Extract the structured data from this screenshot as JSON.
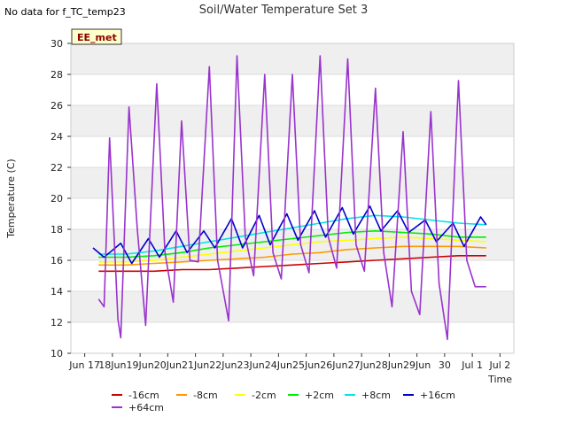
{
  "no_data_text": "No data for f_TC_temp23",
  "badge": "EE_met",
  "chart_data": {
    "type": "line",
    "title": "Soil/Water Temperature Set 3",
    "xlabel": "Time",
    "ylabel": "Temperature (C)",
    "ylim": [
      10,
      30
    ],
    "yticks": [
      10,
      12,
      14,
      16,
      18,
      20,
      22,
      24,
      26,
      28,
      30
    ],
    "xlim": [
      "Jun 17",
      "Jul 2"
    ],
    "xtick_labels": [
      "Jun 17",
      "18Jun",
      "19Jun",
      "20Jun",
      "21Jun",
      "22Jun",
      "23Jun",
      "24Jun",
      "25Jun",
      "26Jun",
      "27Jun",
      "28Jun",
      "29Jun",
      "30",
      "Jul 1",
      "Jul 2"
    ],
    "grid": true,
    "legend_position": "bottom",
    "series": [
      {
        "name": "-16cm",
        "color": "#cc0000",
        "x": [
          "Jun 17.5",
          "Jun 18.5",
          "Jun 19.5",
          "Jun 20.5",
          "Jun 21.5",
          "Jun 22.5",
          "Jun 23.5",
          "Jun 24.5",
          "Jun 25.5",
          "Jun 26.5",
          "Jun 27.5",
          "Jun 28.5",
          "Jun 29.5",
          "Jun 30.5",
          "Jul 1.5"
        ],
        "values": [
          15.3,
          15.3,
          15.3,
          15.4,
          15.4,
          15.5,
          15.6,
          15.7,
          15.8,
          15.9,
          16.0,
          16.1,
          16.2,
          16.3,
          16.3
        ]
      },
      {
        "name": "-8cm",
        "color": "#ff9900",
        "x": [
          "Jun 17.5",
          "Jun 18.5",
          "Jun 19.5",
          "Jun 20.5",
          "Jun 21.5",
          "Jun 22.5",
          "Jun 23.5",
          "Jun 24.5",
          "Jun 25.5",
          "Jun 26.5",
          "Jun 27.5",
          "Jun 28.5",
          "Jun 29.5",
          "Jun 30.5",
          "Jul 1.5"
        ],
        "values": [
          15.7,
          15.7,
          15.8,
          15.9,
          16.0,
          16.1,
          16.2,
          16.4,
          16.5,
          16.7,
          16.8,
          16.9,
          16.9,
          16.9,
          16.8
        ]
      },
      {
        "name": "-2cm",
        "color": "#ffff00",
        "x": [
          "Jun 17.5",
          "Jun 18.5",
          "Jun 19.5",
          "Jun 20.5",
          "Jun 21.5",
          "Jun 22.5",
          "Jun 23.5",
          "Jun 24.5",
          "Jun 25.5",
          "Jun 26.5",
          "Jun 27.5",
          "Jun 28.5",
          "Jun 29.5",
          "Jun 30.5",
          "Jul 1.5"
        ],
        "values": [
          15.9,
          15.9,
          16.0,
          16.2,
          16.4,
          16.6,
          16.8,
          17.0,
          17.2,
          17.3,
          17.4,
          17.5,
          17.4,
          17.3,
          17.2
        ]
      },
      {
        "name": "+2cm",
        "color": "#00ee00",
        "x": [
          "Jun 17.5",
          "Jun 18.5",
          "Jun 19.5",
          "Jun 20.5",
          "Jun 21.5",
          "Jun 22.5",
          "Jun 23.5",
          "Jun 24.5",
          "Jun 25.5",
          "Jun 26.5",
          "Jun 27.5",
          "Jun 28.5",
          "Jun 29.5",
          "Jun 30.5",
          "Jul 1.5"
        ],
        "values": [
          16.2,
          16.2,
          16.3,
          16.5,
          16.8,
          17.0,
          17.2,
          17.4,
          17.6,
          17.8,
          17.9,
          17.8,
          17.7,
          17.5,
          17.5
        ]
      },
      {
        "name": "+8cm",
        "color": "#00e5e5",
        "x": [
          "Jun 17.5",
          "Jun 18.5",
          "Jun 19.5",
          "Jun 20.5",
          "Jun 21.5",
          "Jun 22.5",
          "Jun 23.5",
          "Jun 24.5",
          "Jun 25.5",
          "Jun 26.5",
          "Jun 27.5",
          "Jun 28.5",
          "Jun 29.5",
          "Jun 30.5",
          "Jul 1.5"
        ],
        "values": [
          16.4,
          16.4,
          16.6,
          16.9,
          17.2,
          17.5,
          17.8,
          18.1,
          18.4,
          18.7,
          18.9,
          18.8,
          18.6,
          18.4,
          18.3
        ]
      },
      {
        "name": "+16cm",
        "color": "#0000cc",
        "x": [
          "Jun 17.3",
          "Jun 17.7",
          "Jun 18.3",
          "Jun 18.7",
          "Jun 19.3",
          "Jun 19.7",
          "Jun 20.3",
          "Jun 20.7",
          "Jun 21.3",
          "Jun 21.7",
          "Jun 22.3",
          "Jun 22.7",
          "Jun 23.3",
          "Jun 23.7",
          "Jun 24.3",
          "Jun 24.7",
          "Jun 25.3",
          "Jun 25.7",
          "Jun 26.3",
          "Jun 26.7",
          "Jun 27.3",
          "Jun 27.7",
          "Jun 28.3",
          "Jun 28.7",
          "Jun 29.3",
          "Jun 29.7",
          "Jun 30.3",
          "Jun 30.7",
          "Jul 1.3",
          "Jul 1.5"
        ],
        "values": [
          16.8,
          16.2,
          17.1,
          15.8,
          17.4,
          16.2,
          17.9,
          16.5,
          17.9,
          16.8,
          18.7,
          16.8,
          18.9,
          17.0,
          19.0,
          17.3,
          19.2,
          17.5,
          19.4,
          17.7,
          19.5,
          17.9,
          19.2,
          17.8,
          18.6,
          17.2,
          18.4,
          16.9,
          18.8,
          18.3
        ]
      },
      {
        "name": "+64cm",
        "color": "#9933cc",
        "x": [
          "Jun 17.5",
          "Jun 17.7",
          "Jun 17.9",
          "Jun 18.2",
          "Jun 18.3",
          "Jun 18.6",
          "Jun 18.9",
          "Jun 19.2",
          "Jun 19.6",
          "Jun 19.9",
          "Jun 20.2",
          "Jun 20.5",
          "Jun 20.8",
          "Jun 21.1",
          "Jun 21.5",
          "Jun 21.8",
          "Jun 22.2",
          "Jun 22.5",
          "Jun 22.8",
          "Jun 23.1",
          "Jun 23.5",
          "Jun 23.8",
          "Jun 24.1",
          "Jun 24.5",
          "Jun 24.8",
          "Jun 25.1",
          "Jun 25.5",
          "Jun 25.8",
          "Jun 26.1",
          "Jun 26.5",
          "Jun 26.8",
          "Jun 27.1",
          "Jun 27.5",
          "Jun 27.8",
          "Jun 28.1",
          "Jun 28.5",
          "Jun 28.8",
          "Jun 29.1",
          "Jun 29.5",
          "Jun 29.8",
          "Jun 30.1",
          "Jun 30.5",
          "Jun 30.8",
          "Jul 1.1",
          "Jul 1.5"
        ],
        "values": [
          13.5,
          13.0,
          23.9,
          12.2,
          11.0,
          25.9,
          18.0,
          11.8,
          27.4,
          16.5,
          13.3,
          25.0,
          16.0,
          15.9,
          28.5,
          16.0,
          12.1,
          29.2,
          17.5,
          15.0,
          28.0,
          16.5,
          14.8,
          28.0,
          17.0,
          15.2,
          29.2,
          17.5,
          15.5,
          29.0,
          17.0,
          15.3,
          27.1,
          16.5,
          13.0,
          24.3,
          14.0,
          12.5,
          25.6,
          14.5,
          10.9,
          27.6,
          16.0,
          14.3,
          14.3
        ]
      }
    ]
  }
}
